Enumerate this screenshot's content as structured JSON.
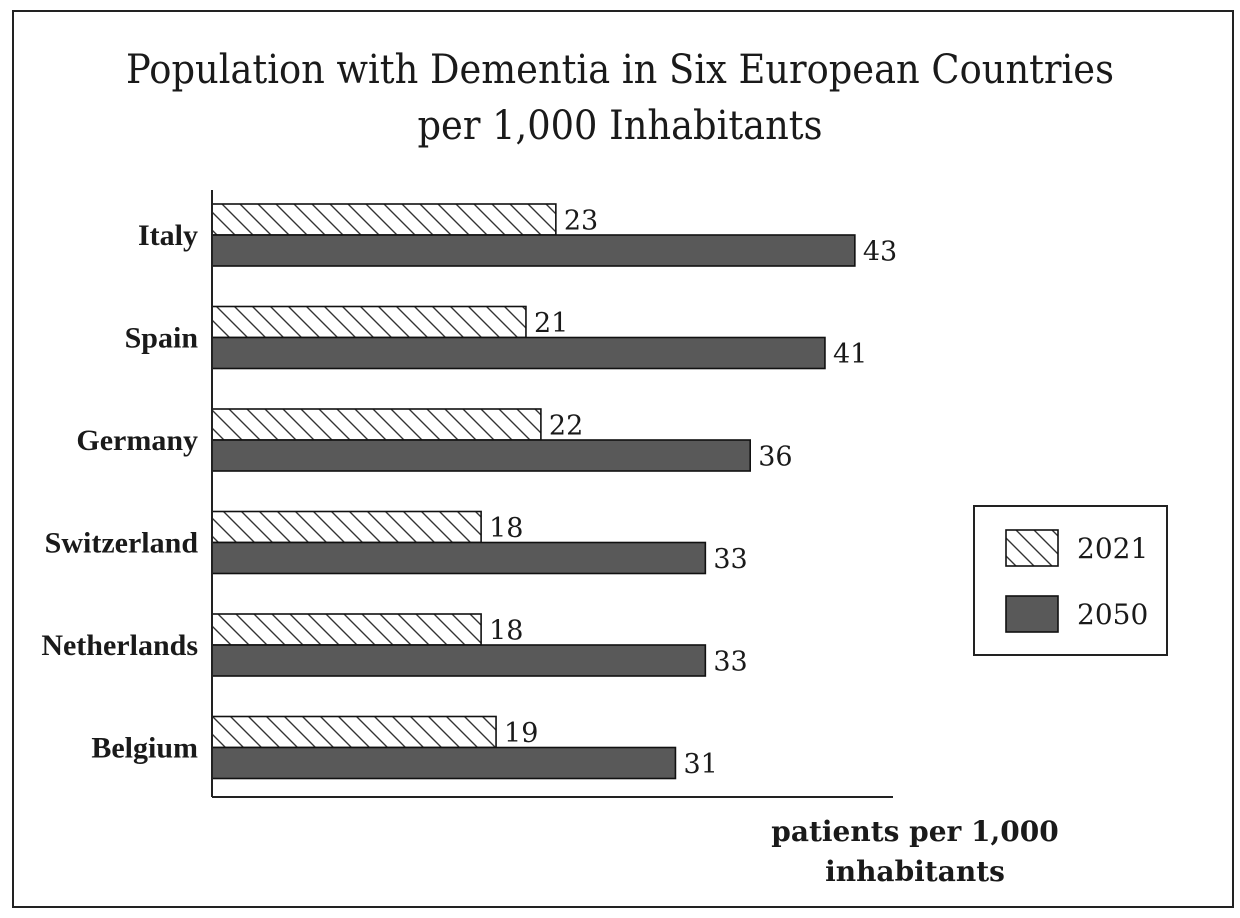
{
  "chart_data": {
    "type": "bar",
    "orientation": "horizontal",
    "title_line1": "Population with Dementia in Six European Countries",
    "title_line2": "per 1,000 Inhabitants",
    "xlabel_line1": "patients per 1,000",
    "xlabel_line2": "inhabitants",
    "ylabel": "",
    "categories": [
      "Italy",
      "Spain",
      "Germany",
      "Switzerland",
      "Netherlands",
      "Belgium"
    ],
    "series": [
      {
        "name": "2021",
        "values": [
          23,
          21,
          22,
          18,
          18,
          19
        ],
        "fill": "hatched"
      },
      {
        "name": "2050",
        "values": [
          43,
          41,
          36,
          33,
          33,
          31
        ],
        "fill": "solid"
      }
    ],
    "xlim": [
      0,
      45
    ],
    "grid": false,
    "legend_position": "right"
  },
  "colors": {
    "series_2050": "#595959",
    "hatch_line": "#333333",
    "axis": "#222222",
    "text": "#1a1a1a"
  }
}
